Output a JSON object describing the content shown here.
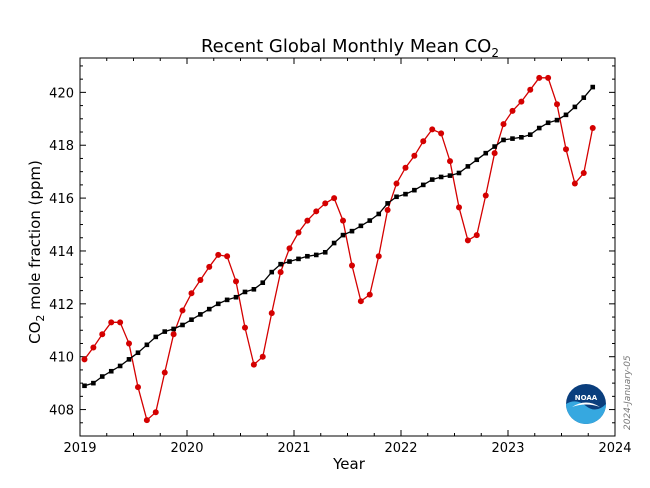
{
  "chart_data": {
    "type": "line",
    "title": "Recent Global Monthly Mean CO",
    "title_subscript": "2",
    "xlabel": "Year",
    "ylabel_prefix": "CO",
    "ylabel_subscript": "2",
    "ylabel_suffix": " mole fraction (ppm)",
    "xlim": [
      2019,
      2024
    ],
    "ylim": [
      407,
      421.3
    ],
    "xticks": [
      2019,
      2020,
      2021,
      2022,
      2023,
      2024
    ],
    "yticks": [
      408,
      410,
      412,
      414,
      416,
      418,
      420
    ],
    "grid": false,
    "date_stamp": "2024-January-05",
    "logo_text": "NOAA",
    "x": [
      2019.042,
      2019.125,
      2019.208,
      2019.292,
      2019.375,
      2019.458,
      2019.542,
      2019.625,
      2019.708,
      2019.792,
      2019.875,
      2019.958,
      2020.042,
      2020.125,
      2020.208,
      2020.292,
      2020.375,
      2020.458,
      2020.542,
      2020.625,
      2020.708,
      2020.792,
      2020.875,
      2020.958,
      2021.042,
      2021.125,
      2021.208,
      2021.292,
      2021.375,
      2021.458,
      2021.542,
      2021.625,
      2021.708,
      2021.792,
      2021.875,
      2021.958,
      2022.042,
      2022.125,
      2022.208,
      2022.292,
      2022.375,
      2022.458,
      2022.542,
      2022.625,
      2022.708,
      2022.792,
      2022.875,
      2022.958,
      2023.042,
      2023.125,
      2023.208,
      2023.292,
      2023.375,
      2023.458,
      2023.542,
      2023.625,
      2023.708,
      2023.792
    ],
    "series": [
      {
        "color": "#d40000",
        "marker": "circle",
        "values": [
          409.9,
          410.35,
          410.85,
          411.3,
          411.3,
          410.5,
          408.85,
          407.6,
          407.9,
          409.4,
          410.85,
          411.75,
          412.4,
          412.9,
          413.4,
          413.85,
          413.8,
          412.85,
          411.1,
          409.7,
          410.0,
          411.65,
          413.2,
          414.1,
          414.7,
          415.15,
          415.5,
          415.8,
          416.0,
          415.15,
          413.45,
          412.1,
          412.35,
          413.8,
          415.55,
          416.55,
          417.15,
          417.6,
          418.15,
          418.6,
          418.45,
          417.4,
          415.65,
          414.4,
          414.6,
          416.1,
          417.7,
          418.8,
          419.3,
          419.65,
          420.1,
          420.55,
          420.55,
          419.55,
          417.85,
          416.55,
          416.95,
          418.65
        ]
      },
      {
        "color": "#000000",
        "marker": "square",
        "values": [
          408.9,
          409.0,
          409.25,
          409.45,
          409.65,
          409.9,
          410.15,
          410.45,
          410.75,
          410.95,
          411.05,
          411.2,
          411.4,
          411.6,
          411.8,
          412.0,
          412.15,
          412.25,
          412.45,
          412.55,
          412.8,
          413.2,
          413.5,
          413.6,
          413.7,
          413.8,
          413.85,
          413.95,
          414.3,
          414.6,
          414.75,
          414.95,
          415.15,
          415.4,
          415.8,
          416.05,
          416.15,
          416.3,
          416.5,
          416.7,
          416.8,
          416.85,
          416.95,
          417.2,
          417.45,
          417.7,
          417.95,
          418.2,
          418.25,
          418.3,
          418.4,
          418.65,
          418.85,
          418.95,
          419.15,
          419.45,
          419.8,
          420.2
        ]
      }
    ]
  }
}
